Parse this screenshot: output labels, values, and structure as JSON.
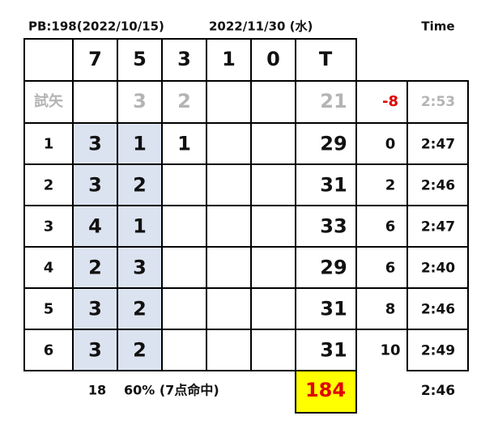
{
  "header": {
    "pb": "PB:198(2022/10/15)",
    "date": "2022/11/30 (水)",
    "time_label": "Time"
  },
  "table": {
    "columns": [
      "7",
      "5",
      "3",
      "1",
      "0",
      "T"
    ],
    "trial": {
      "label": "試矢",
      "cells": [
        null,
        3,
        2,
        null,
        null
      ],
      "total": 21,
      "diff": -8,
      "time": "2:53"
    },
    "rows": [
      {
        "label": 1,
        "cells": [
          3,
          1,
          1,
          null,
          null
        ],
        "total": 29,
        "diff": 0,
        "time": "2:47"
      },
      {
        "label": 2,
        "cells": [
          3,
          2,
          null,
          null,
          null
        ],
        "total": 31,
        "diff": 2,
        "time": "2:46"
      },
      {
        "label": 3,
        "cells": [
          4,
          1,
          null,
          null,
          null
        ],
        "total": 33,
        "diff": 6,
        "time": "2:47"
      },
      {
        "label": 4,
        "cells": [
          2,
          3,
          null,
          null,
          null
        ],
        "total": 29,
        "diff": 6,
        "time": "2:40"
      },
      {
        "label": 5,
        "cells": [
          3,
          2,
          null,
          null,
          null
        ],
        "total": 31,
        "diff": 8,
        "time": "2:46"
      },
      {
        "label": 6,
        "cells": [
          3,
          2,
          null,
          null,
          null
        ],
        "total": 31,
        "diff": 10,
        "time": "2:49"
      }
    ]
  },
  "footer": {
    "hits": 18,
    "rate": "60% (7点命中)",
    "total": 184,
    "time": "2:46"
  }
}
